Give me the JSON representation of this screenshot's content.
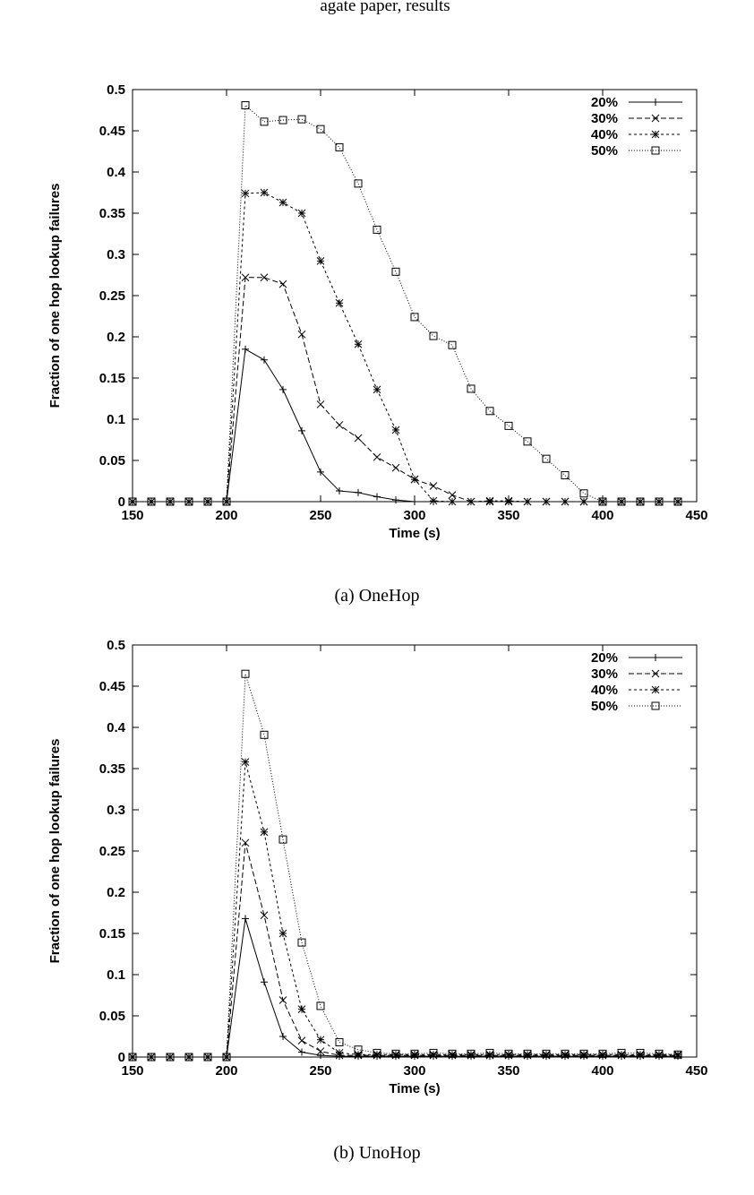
{
  "page": {
    "top_fragment": "agate paper, results"
  },
  "chart_data": [
    {
      "type": "line",
      "caption": "(a) OneHop",
      "xlabel": "Time (s)",
      "ylabel": "Fraction of one hop lookup failures",
      "xlim": [
        150,
        450
      ],
      "ylim": [
        0,
        0.5
      ],
      "xticks": [
        150,
        200,
        250,
        300,
        350,
        400,
        450
      ],
      "yticks": [
        0,
        0.05,
        0.1,
        0.15,
        0.2,
        0.25,
        0.3,
        0.35,
        0.4,
        0.45,
        0.5
      ],
      "legend_position": "top-right",
      "x": [
        150,
        160,
        170,
        180,
        190,
        200,
        210,
        220,
        230,
        240,
        250,
        260,
        270,
        280,
        290,
        300,
        310,
        320,
        330,
        340,
        350,
        360,
        370,
        380,
        390,
        400,
        410,
        420,
        430,
        440
      ],
      "series": [
        {
          "name": "20%",
          "marker": "plus",
          "dash": "",
          "values": [
            0,
            0,
            0,
            0,
            0,
            0,
            0.185,
            0.172,
            0.136,
            0.086,
            0.036,
            0.013,
            0.011,
            0.006,
            0.002,
            0,
            0,
            0,
            0,
            0,
            0,
            0,
            0,
            0,
            0,
            0,
            0,
            0,
            0,
            0
          ]
        },
        {
          "name": "30%",
          "marker": "x",
          "dash": "6,3",
          "values": [
            0,
            0,
            0,
            0,
            0,
            0,
            0.272,
            0.272,
            0.264,
            0.203,
            0.118,
            0.093,
            0.077,
            0.054,
            0.041,
            0.027,
            0.019,
            0.008,
            0,
            0,
            0,
            0,
            0,
            0,
            0,
            0,
            0,
            0,
            0,
            0
          ]
        },
        {
          "name": "40%",
          "marker": "star",
          "dash": "3,3",
          "values": [
            0,
            0,
            0,
            0,
            0,
            0,
            0.374,
            0.375,
            0.363,
            0.35,
            0.292,
            0.241,
            0.191,
            0.136,
            0.087,
            0.027,
            0.001,
            0,
            0,
            0.001,
            0.001,
            0,
            0,
            0,
            0,
            0,
            0,
            0,
            0,
            0
          ]
        },
        {
          "name": "50%",
          "marker": "square",
          "dash": "1,2",
          "values": [
            0,
            0,
            0,
            0,
            0,
            0,
            0.481,
            0.461,
            0.463,
            0.464,
            0.452,
            0.43,
            0.386,
            0.33,
            0.279,
            0.224,
            0.201,
            0.19,
            0.137,
            0.11,
            0.092,
            0.073,
            0.052,
            0.032,
            0.01,
            0,
            0,
            0,
            0,
            0
          ]
        }
      ]
    },
    {
      "type": "line",
      "caption": "(b) UnoHop",
      "xlabel": "Time (s)",
      "ylabel": "Fraction of one hop lookup failures",
      "xlim": [
        150,
        450
      ],
      "ylim": [
        0,
        0.5
      ],
      "xticks": [
        150,
        200,
        250,
        300,
        350,
        400,
        450
      ],
      "yticks": [
        0,
        0.05,
        0.1,
        0.15,
        0.2,
        0.25,
        0.3,
        0.35,
        0.4,
        0.45,
        0.5
      ],
      "legend_position": "top-right",
      "x": [
        150,
        160,
        170,
        180,
        190,
        200,
        210,
        220,
        230,
        240,
        250,
        260,
        270,
        280,
        290,
        300,
        310,
        320,
        330,
        340,
        350,
        360,
        370,
        380,
        390,
        400,
        410,
        420,
        430,
        440
      ],
      "series": [
        {
          "name": "20%",
          "marker": "plus",
          "dash": "",
          "values": [
            0,
            0,
            0,
            0,
            0,
            0,
            0.168,
            0.091,
            0.025,
            0.006,
            0.002,
            0.001,
            0.001,
            0.001,
            0.001,
            0.001,
            0.001,
            0.001,
            0.001,
            0.001,
            0.001,
            0.001,
            0.001,
            0.001,
            0.001,
            0.001,
            0.001,
            0.001,
            0.001,
            0.001
          ]
        },
        {
          "name": "30%",
          "marker": "x",
          "dash": "6,3",
          "values": [
            0,
            0,
            0,
            0,
            0,
            0,
            0.26,
            0.172,
            0.069,
            0.02,
            0.007,
            0.002,
            0.002,
            0.002,
            0.002,
            0.002,
            0.002,
            0.002,
            0.002,
            0.002,
            0.002,
            0.002,
            0.002,
            0.002,
            0.002,
            0.002,
            0.002,
            0.002,
            0.002,
            0.002
          ]
        },
        {
          "name": "40%",
          "marker": "star",
          "dash": "3,3",
          "values": [
            0,
            0,
            0,
            0,
            0,
            0,
            0.358,
            0.273,
            0.15,
            0.058,
            0.021,
            0.005,
            0.003,
            0.003,
            0.003,
            0.003,
            0.003,
            0.003,
            0.003,
            0.003,
            0.003,
            0.003,
            0.003,
            0.003,
            0.003,
            0.003,
            0.003,
            0.003,
            0.003,
            0.003
          ]
        },
        {
          "name": "50%",
          "marker": "square",
          "dash": "1,2",
          "values": [
            0,
            0,
            0,
            0,
            0,
            0,
            0.465,
            0.391,
            0.264,
            0.139,
            0.062,
            0.018,
            0.009,
            0.005,
            0.004,
            0.004,
            0.005,
            0.004,
            0.004,
            0.005,
            0.004,
            0.004,
            0.004,
            0.004,
            0.004,
            0.004,
            0.005,
            0.005,
            0.004,
            0.003
          ]
        }
      ]
    }
  ]
}
